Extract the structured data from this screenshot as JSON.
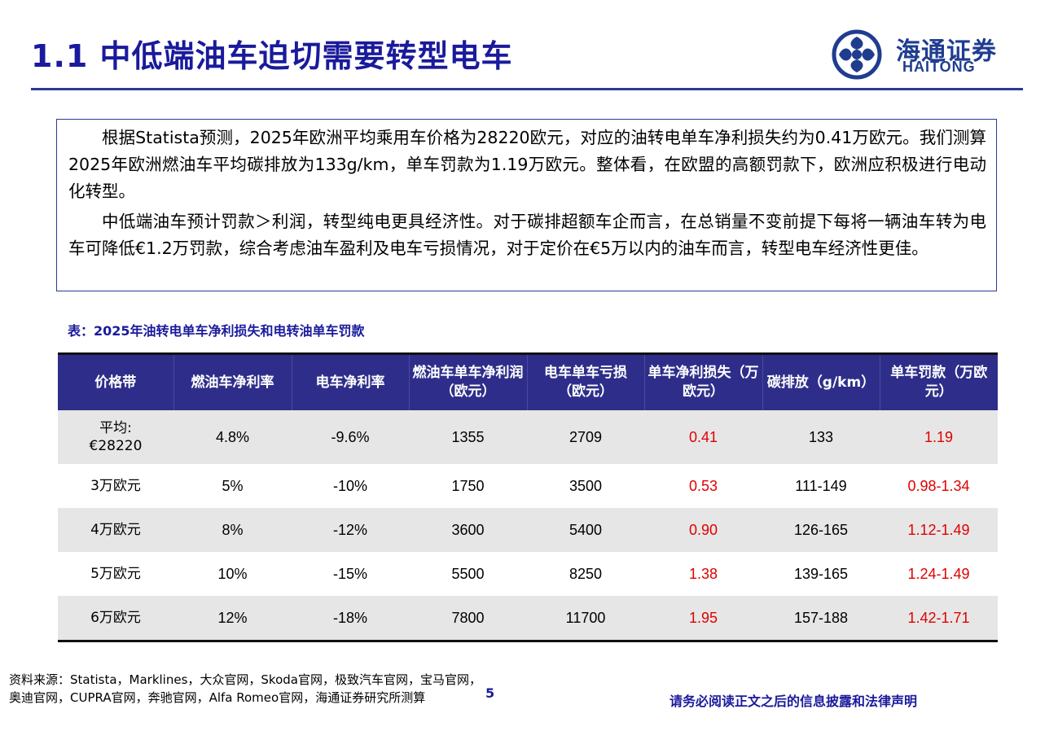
{
  "header": {
    "title": "1.1 中低端油车迫切需要转型电车",
    "logo_cn": "海通证券",
    "logo_en": "HAITONG",
    "accent_color": "#1a1a9c"
  },
  "summary": {
    "paragraphs": [
      "根据Statista预测，2025年欧洲平均乘用车价格为28220欧元，对应的油转电单车净利损失约为0.41万欧元。我们测算2025年欧洲燃油车平均碳排放为133g/km，单车罚款为1.19万欧元。整体看，在欧盟的高额罚款下，欧洲应积极进行电动化转型。",
      "中低端油车预计罚款＞利润，转型纯电更具经济性。对于碳排超额车企而言，在总销量不变前提下每将一辆油车转为电车可降低€1.2万罚款，综合考虑油车盈利及电车亏损情况，对于定价在€5万以内的油车而言，转型电车经济性更佳。"
    ]
  },
  "table": {
    "caption": "表：2025年油转电单车净利损失和电转油单车罚款",
    "headers": [
      "价格带",
      "燃油车净利率",
      "电车净利率",
      "燃油车单车净利润（欧元）",
      "电车单车亏损（欧元）",
      "单车净利损失（万欧元）",
      "碳排放（g/km）",
      "单车罚款（万欧元）"
    ],
    "rows": [
      [
        "平均:\n€28220",
        "4.8%",
        "-9.6%",
        "1355",
        "2709",
        "0.41",
        "133",
        "1.19"
      ],
      [
        "3万欧元",
        "5%",
        "-10%",
        "1750",
        "3500",
        "0.53",
        "111-149",
        "0.98-1.34"
      ],
      [
        "4万欧元",
        "8%",
        "-12%",
        "3600",
        "5400",
        "0.90",
        "126-165",
        "1.12-1.49"
      ],
      [
        "5万欧元",
        "10%",
        "-15%",
        "5500",
        "8250",
        "1.38",
        "139-165",
        "1.24-1.49"
      ],
      [
        "6万欧元",
        "12%",
        "-18%",
        "7800",
        "11700",
        "1.95",
        "157-188",
        "1.42-1.71"
      ]
    ],
    "highlight_color": "#e00000"
  },
  "footer": {
    "source": "资料来源：Statista，Marklines，大众官网，Skoda官网，极致汽车官网，宝马官网，奥迪官网，CUPRA官网，奔驰官网，Alfa Romeo官网，海通证券研究所测算",
    "page_number": "5",
    "disclaimer": "请务必阅读正文之后的信息披露和法律声明"
  }
}
